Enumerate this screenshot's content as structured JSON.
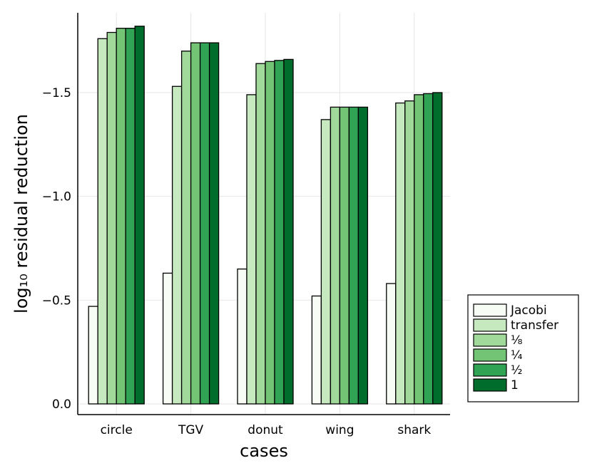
{
  "chart_data": {
    "type": "bar",
    "xlabel": "cases",
    "ylabel": "log₁₀ residual reduction",
    "categories": [
      "circle",
      "TGV",
      "donut",
      "wing",
      "shark"
    ],
    "ylim": [
      0.05,
      -1.88
    ],
    "yticks": [
      0.0,
      -0.5,
      -1.0,
      -1.5
    ],
    "ytick_labels": [
      "0.0",
      "−0.5",
      "−1.0",
      "−1.5"
    ],
    "grid": true,
    "legend_position": "bottom-right outside",
    "series": [
      {
        "name": "Jacobi",
        "color": "#f7fcf5",
        "values": [
          -0.47,
          -0.63,
          -0.65,
          -0.52,
          -0.58
        ]
      },
      {
        "name": "transfer",
        "color": "#c7e9c0",
        "values": [
          -1.76,
          -1.53,
          -1.49,
          -1.37,
          -1.45
        ]
      },
      {
        "name": "⅛",
        "color": "#a1d99b",
        "values": [
          -1.79,
          -1.7,
          -1.64,
          -1.43,
          -1.46
        ]
      },
      {
        "name": "¼",
        "color": "#74c476",
        "values": [
          -1.81,
          -1.74,
          -1.65,
          -1.43,
          -1.49
        ]
      },
      {
        "name": "½",
        "color": "#31a354",
        "values": [
          -1.81,
          -1.74,
          -1.655,
          -1.43,
          -1.495
        ]
      },
      {
        "name": "1",
        "color": "#006d2c",
        "values": [
          -1.82,
          -1.74,
          -1.66,
          -1.43,
          -1.5
        ]
      }
    ]
  }
}
